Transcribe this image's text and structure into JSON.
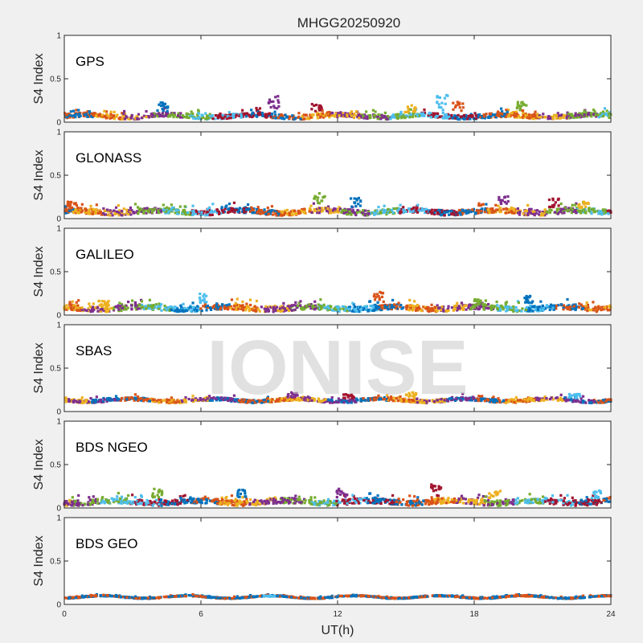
{
  "chart_data": {
    "type": "scatter",
    "title": "MHGG20250920",
    "xlabel": "UT(h)",
    "ylabel": "S4 Index",
    "xlim": [
      0,
      24
    ],
    "ylim": [
      0,
      1
    ],
    "xticks": [
      0,
      6,
      12,
      18,
      24
    ],
    "yticks": [
      0,
      0.5,
      1
    ],
    "ytick_labels": [
      "0",
      "0.5",
      "1"
    ],
    "watermark": "IONISE",
    "series_colors": [
      "#0072BD",
      "#D95319",
      "#EDB120",
      "#7E2F8E",
      "#77AC30",
      "#4DBEEE",
      "#A2142F"
    ],
    "panels": [
      {
        "name": "GPS",
        "baseline": 0.07,
        "spread": 0.025,
        "n_series": 7,
        "peaks": [
          {
            "x": 4.3,
            "y": 0.23
          },
          {
            "x": 9.2,
            "y": 0.3
          },
          {
            "x": 11.1,
            "y": 0.22
          },
          {
            "x": 15.2,
            "y": 0.2
          },
          {
            "x": 16.6,
            "y": 0.32
          },
          {
            "x": 17.3,
            "y": 0.24
          },
          {
            "x": 20.1,
            "y": 0.23
          }
        ]
      },
      {
        "name": "GLONASS",
        "baseline": 0.08,
        "spread": 0.03,
        "n_series": 7,
        "peaks": [
          {
            "x": 0.3,
            "y": 0.2
          },
          {
            "x": 11.2,
            "y": 0.3
          },
          {
            "x": 12.8,
            "y": 0.24
          },
          {
            "x": 19.3,
            "y": 0.27
          },
          {
            "x": 21.5,
            "y": 0.23
          },
          {
            "x": 22.8,
            "y": 0.21
          }
        ]
      },
      {
        "name": "GALILEO",
        "baseline": 0.08,
        "spread": 0.03,
        "n_series": 6,
        "peaks": [
          {
            "x": 1.7,
            "y": 0.17
          },
          {
            "x": 6.0,
            "y": 0.25
          },
          {
            "x": 13.8,
            "y": 0.28
          },
          {
            "x": 18.2,
            "y": 0.18
          },
          {
            "x": 20.4,
            "y": 0.23
          }
        ]
      },
      {
        "name": "SBAS",
        "baseline": 0.13,
        "spread": 0.018,
        "n_series": 4,
        "peaks": [
          {
            "x": 10.0,
            "y": 0.22
          },
          {
            "x": 12.5,
            "y": 0.2
          },
          {
            "x": 15.2,
            "y": 0.22
          },
          {
            "x": 22.4,
            "y": 0.2
          }
        ]
      },
      {
        "name": "BDS NGEO",
        "baseline": 0.07,
        "spread": 0.03,
        "n_series": 7,
        "peaks": [
          {
            "x": 4.1,
            "y": 0.22
          },
          {
            "x": 7.8,
            "y": 0.22
          },
          {
            "x": 12.2,
            "y": 0.22
          },
          {
            "x": 16.3,
            "y": 0.27
          },
          {
            "x": 18.9,
            "y": 0.2
          },
          {
            "x": 23.4,
            "y": 0.2
          }
        ]
      },
      {
        "name": "BDS GEO",
        "baseline": 0.085,
        "spread": 0.006,
        "n_series": 2,
        "peaks": [
          {
            "x": 9.0,
            "y": 0.1
          },
          {
            "x": 20.3,
            "y": 0.1
          }
        ]
      }
    ]
  }
}
